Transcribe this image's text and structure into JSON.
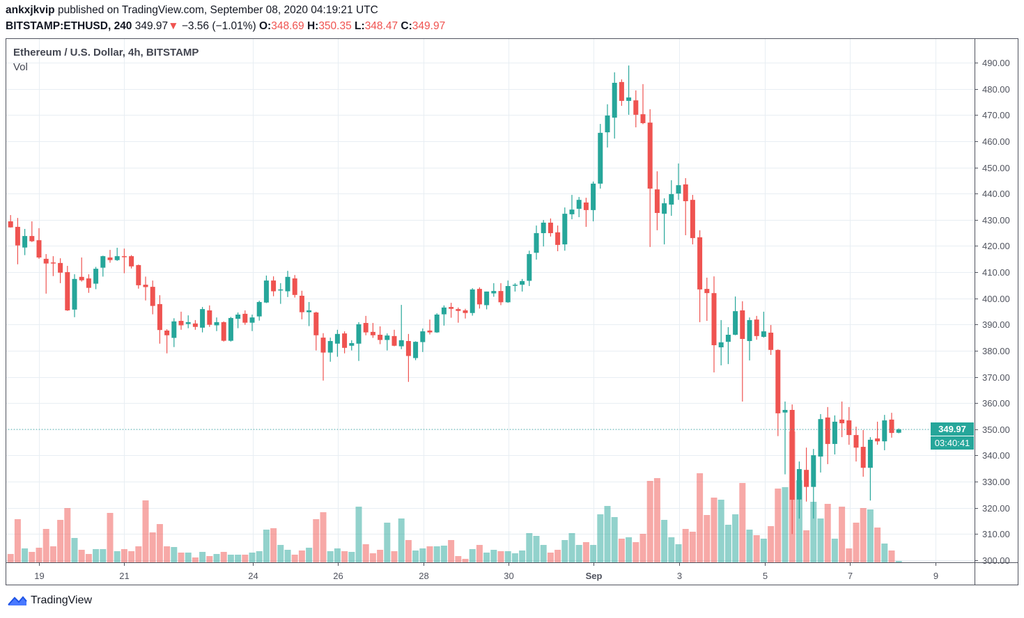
{
  "header": {
    "user": "ankxjkvip",
    "published": " published on TradingView.com, September 08, 2020 04:19:21 UTC",
    "symbol": "BITSTAMP:ETHUSD, 240",
    "last": "349.97",
    "change": "−3.56 (−1.01%)",
    "o_label": "O:",
    "o": "348.69",
    "h_label": "H:",
    "h": "350.35",
    "l_label": "L:",
    "l": "348.47",
    "c_label": "C:",
    "c": "349.97",
    "change_icon": "triangle-down"
  },
  "legend": {
    "title": "Ethereum / U.S. Dollar, 4h, BITSTAMP",
    "vol": "Vol"
  },
  "price_tag": "349.97",
  "countdown": "03:40:41",
  "footer": {
    "brand": "TradingView"
  },
  "colors": {
    "up": "#26a69a",
    "down": "#ef5350",
    "grid": "#e8eef3",
    "axis": "#50535e"
  },
  "chart_data": {
    "type": "candlestick",
    "interval": "4h",
    "ylim": [
      300,
      490
    ],
    "y_ticks": [
      "300.00",
      "310.00",
      "320.00",
      "330.00",
      "340.00",
      "350.00",
      "360.00",
      "370.00",
      "380.00",
      "390.00",
      "400.00",
      "410.00",
      "420.00",
      "430.00",
      "440.00",
      "450.00",
      "460.00",
      "470.00",
      "480.00",
      "490.00"
    ],
    "x_ticks": [
      "19",
      "21",
      "24",
      "26",
      "28",
      "30",
      "Sep",
      "3",
      "5",
      "7",
      "9"
    ],
    "grid": true,
    "candle_fields": [
      "open",
      "high",
      "low",
      "close",
      "volume_relative"
    ],
    "candles": [
      [
        429.4,
        431.8,
        427.0,
        427.1,
        36
      ],
      [
        427.3,
        430.7,
        413.0,
        420.2,
        186
      ],
      [
        419.4,
        426.5,
        416.5,
        423.8,
        60
      ],
      [
        423.8,
        429.4,
        421.5,
        421.8,
        45
      ],
      [
        422.2,
        426.8,
        415.1,
        415.6,
        63
      ],
      [
        415.1,
        416.9,
        401.8,
        413.3,
        144
      ],
      [
        413.7,
        416.1,
        408.5,
        413.3,
        69
      ],
      [
        413.5,
        415.3,
        405.8,
        409.8,
        183
      ],
      [
        410.0,
        412.4,
        395.2,
        395.4,
        234
      ],
      [
        395.7,
        409.2,
        392.8,
        407.4,
        105
      ],
      [
        408.2,
        415.6,
        406.4,
        406.9,
        54
      ],
      [
        407.6,
        409.2,
        402.1,
        404.0,
        36
      ],
      [
        405.6,
        412.0,
        403.5,
        411.3,
        57
      ],
      [
        411.7,
        416.3,
        408.3,
        416.1,
        57
      ],
      [
        415.6,
        418.5,
        413.6,
        414.6,
        213
      ],
      [
        414.6,
        419.3,
        414.3,
        416.1,
        48
      ],
      [
        416.1,
        419.0,
        409.6,
        415.9,
        57
      ],
      [
        416.1,
        416.5,
        411.4,
        412.2,
        48
      ],
      [
        412.7,
        412.9,
        403.7,
        405.0,
        69
      ],
      [
        405.2,
        408.3,
        399.2,
        404.3,
        267
      ],
      [
        404.4,
        406.8,
        393.9,
        397.1,
        129
      ],
      [
        397.8,
        401.2,
        382.7,
        387.9,
        165
      ],
      [
        387.7,
        388.2,
        379.0,
        385.9,
        69
      ],
      [
        384.9,
        392.4,
        381.4,
        391.2,
        66
      ],
      [
        391.4,
        394.9,
        388.0,
        389.7,
        42
      ],
      [
        390.2,
        393.5,
        388.6,
        390.9,
        42
      ],
      [
        390.4,
        391.7,
        388.0,
        389.1,
        21
      ],
      [
        388.8,
        396.7,
        387.0,
        395.9,
        45
      ],
      [
        395.4,
        397.3,
        389.1,
        389.9,
        27
      ],
      [
        389.7,
        392.7,
        387.5,
        390.9,
        36
      ],
      [
        390.9,
        391.2,
        383.5,
        383.8,
        45
      ],
      [
        383.8,
        392.9,
        383.5,
        392.5,
        33
      ],
      [
        392.2,
        394.6,
        388.6,
        393.8,
        33
      ],
      [
        394.1,
        395.4,
        389.9,
        390.7,
        33
      ],
      [
        390.7,
        393.8,
        387.5,
        392.7,
        42
      ],
      [
        393.1,
        399.1,
        391.5,
        398.6,
        48
      ],
      [
        398.4,
        408.7,
        398.2,
        406.8,
        141
      ],
      [
        406.8,
        408.4,
        400.8,
        402.7,
        147
      ],
      [
        403.2,
        405.8,
        397.9,
        403.4,
        75
      ],
      [
        402.7,
        410.5,
        400.5,
        408.2,
        54
      ],
      [
        407.6,
        408.9,
        400.3,
        401.3,
        33
      ],
      [
        401.0,
        402.9,
        392.0,
        394.7,
        51
      ],
      [
        394.7,
        398.6,
        389.4,
        395.4,
        63
      ],
      [
        394.6,
        394.9,
        380.1,
        385.9,
        186
      ],
      [
        385.0,
        386.7,
        368.6,
        379.3,
        216
      ],
      [
        379.3,
        385.0,
        375.8,
        383.7,
        48
      ],
      [
        382.7,
        388.0,
        377.7,
        386.4,
        60
      ],
      [
        386.6,
        387.4,
        379.0,
        381.1,
        48
      ],
      [
        381.9,
        384.0,
        380.1,
        382.9,
        45
      ],
      [
        382.7,
        390.9,
        376.1,
        390.1,
        240
      ],
      [
        390.6,
        393.3,
        385.9,
        387.0,
        78
      ],
      [
        387.2,
        390.6,
        384.9,
        385.9,
        39
      ],
      [
        386.1,
        389.3,
        382.5,
        384.1,
        54
      ],
      [
        384.1,
        386.6,
        380.1,
        385.8,
        171
      ],
      [
        385.6,
        388.0,
        381.7,
        381.9,
        48
      ],
      [
        381.7,
        397.5,
        380.6,
        384.0,
        189
      ],
      [
        383.7,
        386.4,
        368.1,
        378.0,
        96
      ],
      [
        377.2,
        383.6,
        376.4,
        383.4,
        51
      ],
      [
        383.3,
        388.5,
        379.5,
        387.4,
        60
      ],
      [
        387.7,
        391.9,
        386.2,
        387.0,
        69
      ],
      [
        387.0,
        394.3,
        386.8,
        393.8,
        69
      ],
      [
        393.9,
        397.3,
        389.6,
        396.5,
        72
      ],
      [
        396.7,
        398.3,
        392.6,
        396.0,
        96
      ],
      [
        395.9,
        396.5,
        390.7,
        395.2,
        27
      ],
      [
        395.4,
        396.0,
        392.3,
        394.4,
        15
      ],
      [
        394.4,
        403.9,
        393.4,
        403.4,
        57
      ],
      [
        403.6,
        404.2,
        396.1,
        397.7,
        75
      ],
      [
        397.4,
        402.6,
        395.8,
        402.6,
        42
      ],
      [
        401.9,
        405.8,
        400.6,
        402.8,
        54
      ],
      [
        402.8,
        405.8,
        397.4,
        398.5,
        48
      ],
      [
        398.5,
        406.8,
        398.3,
        404.7,
        48
      ],
      [
        404.9,
        405.8,
        402.6,
        405.2,
        39
      ],
      [
        405.2,
        407.4,
        402.6,
        406.6,
        51
      ],
      [
        406.7,
        418.2,
        404.7,
        416.9,
        126
      ],
      [
        417.4,
        427.8,
        414.8,
        424.9,
        114
      ],
      [
        424.9,
        429.9,
        419.8,
        428.9,
        75
      ],
      [
        428.9,
        430.5,
        423.6,
        424.9,
        42
      ],
      [
        425.2,
        427.8,
        418.0,
        420.4,
        54
      ],
      [
        420.6,
        434.7,
        418.2,
        432.3,
        96
      ],
      [
        432.1,
        439.5,
        430.2,
        433.9,
        126
      ],
      [
        434.2,
        438.7,
        431.0,
        437.6,
        75
      ],
      [
        436.6,
        438.4,
        427.3,
        433.7,
        87
      ],
      [
        433.7,
        444.6,
        429.4,
        443.8,
        75
      ],
      [
        443.8,
        466.6,
        441.9,
        463.2,
        207
      ],
      [
        463.4,
        474.1,
        457.6,
        469.8,
        243
      ],
      [
        469.0,
        486.3,
        461.0,
        482.3,
        195
      ],
      [
        482.6,
        483.6,
        473.5,
        475.4,
        102
      ],
      [
        475.4,
        488.9,
        470.1,
        476.7,
        108
      ],
      [
        475.6,
        479.4,
        465.3,
        470.1,
        87
      ],
      [
        470.3,
        481.8,
        466.5,
        466.9,
        123
      ],
      [
        467.1,
        472.2,
        419.6,
        441.9,
        351
      ],
      [
        441.6,
        448.5,
        426.0,
        432.6,
        363
      ],
      [
        432.3,
        438.2,
        420.6,
        436.3,
        183
      ],
      [
        435.8,
        445.1,
        431.5,
        439.8,
        108
      ],
      [
        440.0,
        451.5,
        437.6,
        443.2,
        78
      ],
      [
        443.5,
        445.9,
        424.1,
        437.1,
        144
      ],
      [
        437.6,
        439.5,
        420.6,
        423.0,
        132
      ],
      [
        423.3,
        426.0,
        390.9,
        403.4,
        384
      ],
      [
        403.6,
        407.9,
        391.4,
        402.0,
        204
      ],
      [
        402.0,
        408.4,
        371.7,
        382.1,
        279
      ],
      [
        381.3,
        391.7,
        374.4,
        383.2,
        270
      ],
      [
        383.4,
        389.0,
        374.9,
        386.1,
        162
      ],
      [
        386.1,
        400.7,
        385.9,
        395.1,
        207
      ],
      [
        395.4,
        398.9,
        360.6,
        384.5,
        342
      ],
      [
        383.7,
        392.7,
        376.3,
        391.7,
        141
      ],
      [
        391.9,
        393.3,
        384.2,
        385.6,
        117
      ],
      [
        385.3,
        394.9,
        385.0,
        387.4,
        102
      ],
      [
        386.9,
        389.8,
        378.4,
        380.3,
        156
      ],
      [
        380.3,
        380.5,
        347.4,
        356.1,
        318
      ],
      [
        356.4,
        360.6,
        332.8,
        357.4,
        324
      ],
      [
        357.4,
        359.5,
        310.0,
        323.1,
        564
      ],
      [
        323.2,
        337.7,
        315.9,
        334.8,
        354
      ],
      [
        334.5,
        343.0,
        322.4,
        328.0,
        138
      ],
      [
        328.0,
        342.5,
        315.9,
        340.1,
        261
      ],
      [
        339.6,
        355.8,
        333.5,
        353.9,
        189
      ],
      [
        354.5,
        358.5,
        336.7,
        344.4,
        252
      ],
      [
        344.4,
        355.3,
        340.4,
        352.9,
        102
      ],
      [
        353.7,
        360.6,
        347.0,
        352.3,
        240
      ],
      [
        353.4,
        358.5,
        344.1,
        347.8,
        60
      ],
      [
        347.8,
        351.0,
        337.7,
        343.0,
        171
      ],
      [
        343.3,
        349.7,
        331.9,
        335.3,
        234
      ],
      [
        335.3,
        347.0,
        322.8,
        346.0,
        228
      ],
      [
        346.5,
        352.9,
        344.1,
        345.4,
        150
      ],
      [
        345.4,
        355.5,
        342.0,
        353.4,
        81
      ],
      [
        353.7,
        356.3,
        346.8,
        348.6,
        51
      ],
      [
        348.69,
        350.35,
        348.47,
        349.97,
        6
      ]
    ]
  }
}
